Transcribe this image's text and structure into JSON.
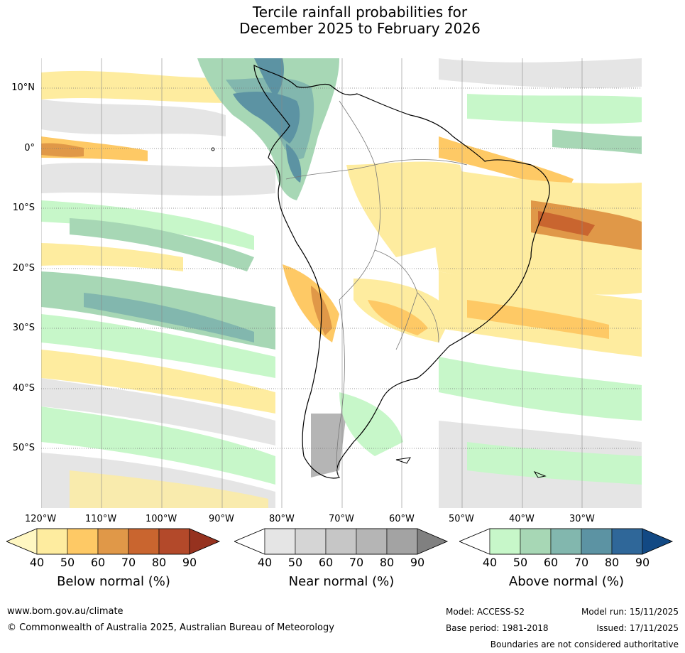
{
  "title_line1": "Tercile rainfall probabilities for",
  "title_line2": "December 2025 to February 2026",
  "lat_labels": [
    "10°N",
    "0°",
    "10°S",
    "20°S",
    "30°S",
    "40°S",
    "50°S"
  ],
  "lon_labels": [
    "120°W",
    "110°W",
    "100°W",
    "90°W",
    "80°W",
    "70°W",
    "60°W",
    "50°W",
    "40°W",
    "30°W"
  ],
  "colorbars": {
    "below": {
      "title": "Below normal (%)",
      "ticks": [
        "40",
        "50",
        "60",
        "70",
        "80",
        "90"
      ],
      "colors": [
        "#fff7c2",
        "#feec9f",
        "#fec965",
        "#e09848",
        "#c9652f",
        "#b3492a",
        "#96321f"
      ]
    },
    "near": {
      "title": "Near normal (%)",
      "ticks": [
        "40",
        "50",
        "60",
        "70",
        "80",
        "90"
      ],
      "colors": [
        "#ffffff",
        "#e5e5e5",
        "#d5d5d5",
        "#c6c6c6",
        "#b5b5b5",
        "#a3a3a3",
        "#808080"
      ]
    },
    "above": {
      "title": "Above normal (%)",
      "ticks": [
        "40",
        "50",
        "60",
        "70",
        "80",
        "90"
      ],
      "colors": [
        "#ffffff",
        "#c7f7c9",
        "#a7d7b5",
        "#82b7ae",
        "#5c93a3",
        "#2f6799",
        "#124984"
      ]
    }
  },
  "footer": {
    "website": "www.bom.gov.au/climate",
    "copyright": "© Commonwealth of Australia 2025, Australian Bureau of Meteorology",
    "model": "Model: ACCESS-S2",
    "base_period": "Base period: 1981-2018",
    "model_run": "Model run: 15/11/2025",
    "issued": "Issued: 17/11/2025",
    "disclaimer": "Boundaries are not considered authoritative"
  }
}
